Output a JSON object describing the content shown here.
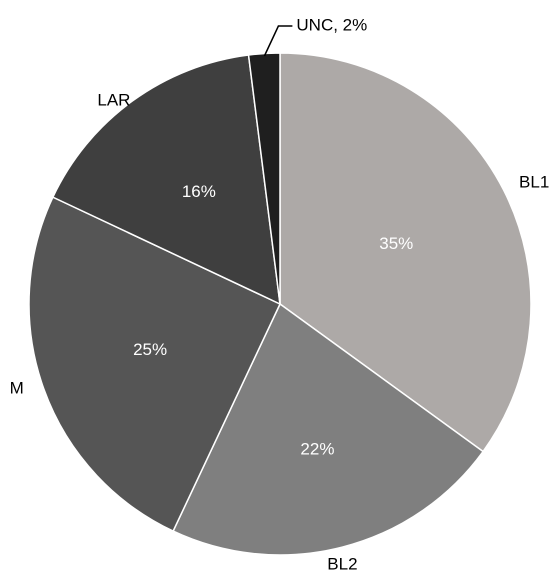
{
  "chart_data": {
    "type": "pie",
    "start": "12 o'clock",
    "direction": "clockwise",
    "slices": [
      {
        "label": "BL1",
        "value": 35,
        "value_label": "35%",
        "color": "#ada9a7"
      },
      {
        "label": "BL2",
        "value": 22,
        "value_label": "22%",
        "color": "#7f7f7f"
      },
      {
        "label": "M",
        "value": 25,
        "value_label": "25%",
        "color": "#555555"
      },
      {
        "label": "LAR",
        "value": 16,
        "value_label": "16%",
        "color": "#3f3f3f"
      },
      {
        "label": "UNC",
        "value": 2,
        "value_label": "UNC, 2%",
        "color": "#1f1f1f"
      }
    ]
  }
}
